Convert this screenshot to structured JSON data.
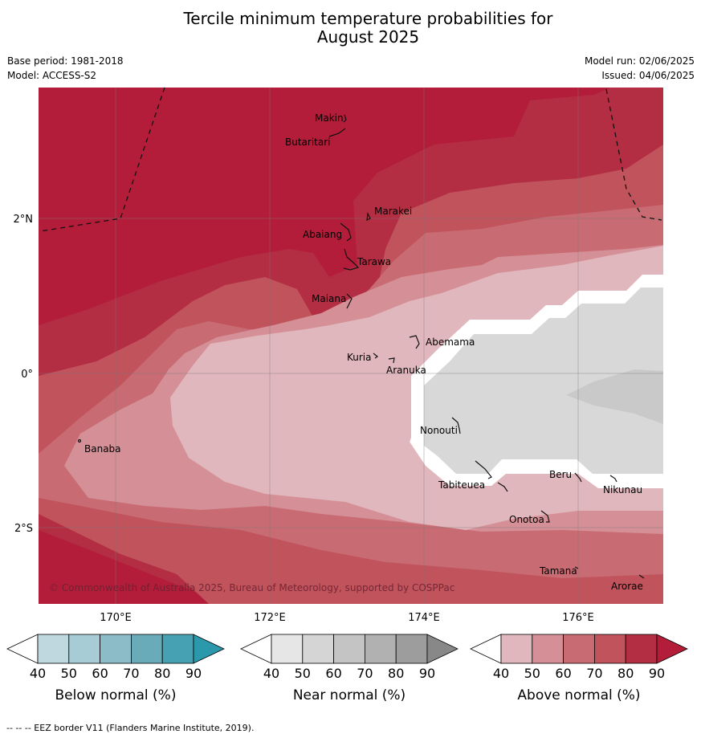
{
  "title": {
    "line1": "Tercile minimum temperature probabilities for",
    "line2": "August 2025"
  },
  "meta": {
    "base_period": "Base period: 1981-2018",
    "model": "Model: ACCESS-S2",
    "model_run": "Model run: 02/06/2025",
    "issued": "Issued: 04/06/2025"
  },
  "map": {
    "lat_labels": [
      "2°N",
      "0°",
      "2°S"
    ],
    "lon_labels": [
      "170°E",
      "172°E",
      "174°E",
      "176°E"
    ],
    "places": [
      "Makin",
      "Butaritari",
      "Marakei",
      "Abaiang",
      "Tarawa",
      "Maiana",
      "Abemama",
      "Kuria",
      "Aranuka",
      "Banaba",
      "Nonouti",
      "Tabiteuea",
      "Beru",
      "Nikunau",
      "Onotoa",
      "Tamana",
      "Arorae"
    ],
    "copyright": "© Commonwealth of Australia 2025, Bureau of Meteorology, supported by COSPPac"
  },
  "colorbars": [
    {
      "label": "Below normal (%)",
      "ticks": [
        "40",
        "50",
        "60",
        "70",
        "80",
        "90"
      ],
      "colors": [
        "#ffffff",
        "#bfd7df",
        "#a8ccd5",
        "#8cbcc8",
        "#6aabba",
        "#46a2b2",
        "#2c98ac"
      ]
    },
    {
      "label": "Near normal (%)",
      "ticks": [
        "40",
        "50",
        "60",
        "70",
        "80",
        "90"
      ],
      "colors": [
        "#ffffff",
        "#e6e6e6",
        "#d5d5d5",
        "#c4c4c4",
        "#b1b1b1",
        "#9d9d9d",
        "#888888"
      ]
    },
    {
      "label": "Above normal (%)",
      "ticks": [
        "40",
        "50",
        "60",
        "70",
        "80",
        "90"
      ],
      "colors": [
        "#ffffff",
        "#e0b7bd",
        "#d58f97",
        "#c96b73",
        "#c0535b",
        "#b32d43",
        "#b31d3a"
      ]
    }
  ],
  "footer": "--  --  -- EEZ border V11 (Flanders Marine Institute, 2019)."
}
